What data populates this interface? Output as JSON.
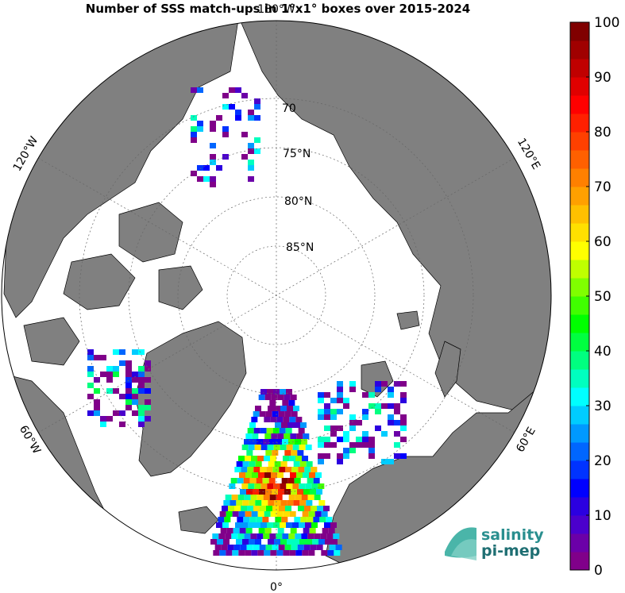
{
  "title": "Number of SSS match-ups in 1°x1° boxes over 2015-2024",
  "colorbar": {
    "tick_labels": [
      "0",
      "10",
      "20",
      "30",
      "40",
      "50",
      "60",
      "70",
      "80",
      "90",
      "100"
    ],
    "min": 0,
    "max": 100,
    "colors": [
      "#80008a",
      "#6b00a8",
      "#4b00cc",
      "#2b00e0",
      "#0000ff",
      "#0033ff",
      "#0066ff",
      "#0099ff",
      "#00ccff",
      "#00ffff",
      "#00ffbf",
      "#00ff80",
      "#00ff40",
      "#00ff00",
      "#40ff00",
      "#80ff00",
      "#bfff00",
      "#ffff00",
      "#ffe000",
      "#ffc000",
      "#ffa000",
      "#ff8000",
      "#ff6000",
      "#ff4000",
      "#ff2000",
      "#ff0000",
      "#e00000",
      "#c00000",
      "#a00000",
      "#800000"
    ]
  },
  "map": {
    "projection": "north polar stereographic",
    "ocean_color": "#ffffff",
    "land_color": "#808080",
    "latitude_labels": [
      {
        "value": "70",
        "text": "70"
      },
      {
        "value": "75",
        "text": "75°N"
      },
      {
        "value": "80",
        "text": "80°N"
      },
      {
        "value": "85",
        "text": "85°N"
      }
    ],
    "longitude_labels": {
      "top": "180°W",
      "bottom": "0°",
      "left_upper": "120°W",
      "left_lower": "60°W",
      "right_upper": "120°E",
      "right_lower": "60°E"
    }
  },
  "logo": {
    "line1": "salinity",
    "line2": "pi-mep"
  }
}
